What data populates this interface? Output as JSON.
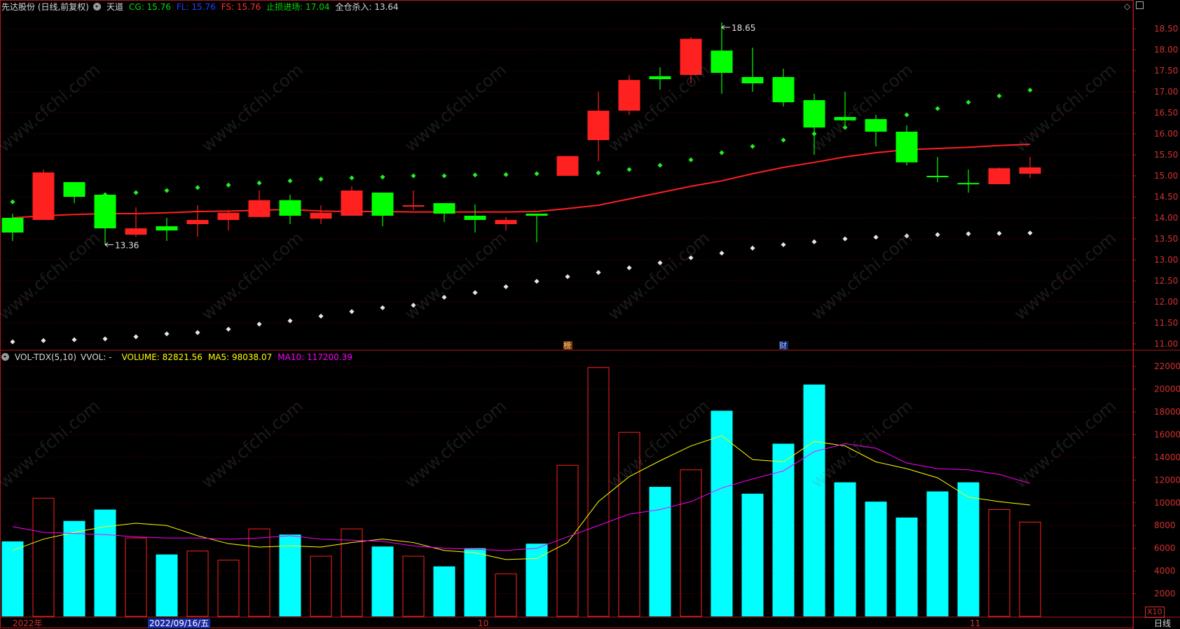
{
  "header": {
    "stock_name": "先达股份 (日线,前复权)",
    "indicator_name": "天道",
    "cg": "CG: 15.76",
    "fl": "FL: 15.76",
    "fs": "FS: 15.76",
    "stop_loss": "止损进场: 17.04",
    "all_cross": "全仓杀入: 13.64"
  },
  "vol_header": {
    "name": "VOL-TDX(5,10)",
    "vvol": "VVOL: -",
    "volume": "VOLUME: 82821.56",
    "ma5": "MA5: 98038.07",
    "ma10": "MA10: 117200.39"
  },
  "annotations": {
    "high": "18.65",
    "low": "13.36",
    "marker1": "榜",
    "marker2": "财"
  },
  "footer": {
    "year": "2022年",
    "cursor_date": "2022/09/16/五",
    "oct": "10",
    "nov": "11",
    "period": "日线",
    "x10": "X10"
  },
  "colors": {
    "up": "#ff2020",
    "down": "#00ff00",
    "vol_down": "#00ffff",
    "ma5": "#ffff00",
    "ma10": "#ff00ff",
    "grid": "#6a0000",
    "axis": "#b01818"
  },
  "chart_data": [
    {
      "type": "candlestick",
      "title": "先达股份 (日线,前复权)",
      "y_ticks": [
        11.0,
        11.5,
        12.0,
        12.5,
        13.0,
        13.5,
        14.0,
        14.5,
        15.0,
        15.5,
        16.0,
        16.5,
        17.0,
        17.5,
        18.0,
        18.5
      ],
      "ylim": [
        10.85,
        18.85
      ],
      "candles": [
        {
          "o": 14.0,
          "h": 14.1,
          "l": 13.45,
          "c": 13.65
        },
        {
          "o": 13.95,
          "h": 15.15,
          "l": 13.95,
          "c": 15.08
        },
        {
          "o": 14.85,
          "h": 14.85,
          "l": 14.35,
          "c": 14.5
        },
        {
          "o": 14.55,
          "h": 14.6,
          "l": 13.36,
          "c": 13.75
        },
        {
          "o": 13.6,
          "h": 14.25,
          "l": 13.55,
          "c": 13.75
        },
        {
          "o": 13.8,
          "h": 14.0,
          "l": 13.45,
          "c": 13.7
        },
        {
          "o": 13.85,
          "h": 14.3,
          "l": 13.55,
          "c": 13.95
        },
        {
          "o": 13.95,
          "h": 14.15,
          "l": 13.7,
          "c": 14.12
        },
        {
          "o": 14.02,
          "h": 14.65,
          "l": 14.02,
          "c": 14.42
        },
        {
          "o": 14.42,
          "h": 14.55,
          "l": 13.85,
          "c": 14.05
        },
        {
          "o": 13.98,
          "h": 14.3,
          "l": 13.85,
          "c": 14.12
        },
        {
          "o": 14.05,
          "h": 14.75,
          "l": 14.05,
          "c": 14.65
        },
        {
          "o": 14.6,
          "h": 14.6,
          "l": 13.8,
          "c": 14.05
        },
        {
          "o": 14.28,
          "h": 14.65,
          "l": 14.18,
          "c": 14.3
        },
        {
          "o": 14.35,
          "h": 14.35,
          "l": 13.9,
          "c": 14.1
        },
        {
          "o": 14.05,
          "h": 14.32,
          "l": 13.65,
          "c": 13.95
        },
        {
          "o": 13.85,
          "h": 14.02,
          "l": 13.7,
          "c": 13.95
        },
        {
          "o": 14.1,
          "h": 14.1,
          "l": 13.42,
          "c": 14.05
        },
        {
          "o": 15.0,
          "h": 15.47,
          "l": 15.0,
          "c": 15.47
        },
        {
          "o": 15.85,
          "h": 17.0,
          "l": 15.35,
          "c": 16.55
        },
        {
          "o": 16.55,
          "h": 17.4,
          "l": 16.45,
          "c": 17.28
        },
        {
          "o": 17.37,
          "h": 17.58,
          "l": 17.05,
          "c": 17.3
        },
        {
          "o": 17.4,
          "h": 18.3,
          "l": 17.2,
          "c": 18.26
        },
        {
          "o": 17.98,
          "h": 18.65,
          "l": 16.95,
          "c": 17.45
        },
        {
          "o": 17.35,
          "h": 18.05,
          "l": 17.0,
          "c": 17.2
        },
        {
          "o": 17.35,
          "h": 17.55,
          "l": 16.65,
          "c": 16.75
        },
        {
          "o": 16.8,
          "h": 16.95,
          "l": 15.5,
          "c": 16.15
        },
        {
          "o": 16.4,
          "h": 17.0,
          "l": 16.1,
          "c": 16.32
        },
        {
          "o": 16.35,
          "h": 16.45,
          "l": 15.7,
          "c": 16.05
        },
        {
          "o": 16.05,
          "h": 16.2,
          "l": 15.25,
          "c": 15.32
        },
        {
          "o": 15.0,
          "h": 15.45,
          "l": 14.85,
          "c": 14.99
        },
        {
          "o": 14.83,
          "h": 15.15,
          "l": 14.6,
          "c": 14.8
        },
        {
          "o": 14.8,
          "h": 15.2,
          "l": 14.8,
          "c": 15.18
        },
        {
          "o": 15.05,
          "h": 15.45,
          "l": 14.95,
          "c": 15.2
        }
      ],
      "ma_line": [
        14.0,
        14.05,
        14.08,
        14.1,
        14.1,
        14.12,
        14.15,
        14.16,
        14.18,
        14.2,
        14.16,
        14.15,
        14.15,
        14.14,
        14.14,
        14.14,
        14.14,
        14.15,
        14.22,
        14.3,
        14.45,
        14.6,
        14.75,
        14.88,
        15.05,
        15.2,
        15.32,
        15.45,
        15.55,
        15.62,
        15.65,
        15.68,
        15.72,
        15.75
      ],
      "upper_dots": [
        14.38,
        null,
        null,
        14.55,
        14.6,
        14.65,
        14.72,
        14.78,
        14.83,
        14.88,
        14.92,
        14.95,
        14.97,
        15.0,
        15.0,
        15.02,
        15.03,
        15.05,
        null,
        15.07,
        15.15,
        15.25,
        15.38,
        15.55,
        15.7,
        15.85,
        16.0,
        16.15,
        16.3,
        16.45,
        16.6,
        16.75,
        16.9,
        17.04
      ],
      "lower_dots": [
        11.05,
        11.08,
        11.1,
        11.12,
        11.17,
        11.24,
        11.27,
        11.35,
        11.47,
        11.55,
        11.66,
        11.77,
        11.86,
        11.92,
        12.11,
        12.22,
        12.36,
        12.49,
        12.6,
        12.7,
        12.81,
        12.93,
        13.05,
        13.16,
        13.28,
        13.36,
        13.43,
        13.5,
        13.54,
        13.57,
        13.6,
        13.62,
        13.63,
        13.64
      ]
    },
    {
      "type": "bar",
      "title": "VOL-TDX(5,10)",
      "y_ticks": [
        2000,
        4000,
        6000,
        8000,
        10000,
        12000,
        14000,
        16000,
        18000,
        20000,
        22000
      ],
      "ylim": [
        0,
        22500
      ],
      "volumes": [
        6600,
        10400,
        8400,
        9400,
        6900,
        5450,
        5750,
        4950,
        7700,
        7200,
        5300,
        7700,
        6150,
        5300,
        4400,
        6000,
        3750,
        6400,
        13300,
        21900,
        16200,
        11400,
        12900,
        18100,
        10800,
        15200,
        20400,
        11800,
        10100,
        8700,
        11000,
        11800,
        9400,
        8300
      ],
      "ma5": [
        5800,
        6800,
        7400,
        7900,
        8200,
        8000,
        7100,
        6400,
        6100,
        6200,
        6100,
        6500,
        6800,
        6500,
        5800,
        5600,
        5000,
        5100,
        6500,
        10100,
        12300,
        13700,
        15000,
        15900,
        13800,
        13600,
        15400,
        15000,
        13600,
        13000,
        12200,
        10500,
        10100,
        9800
      ],
      "ma10": [
        7900,
        7400,
        7300,
        7200,
        7000,
        6900,
        6900,
        6800,
        6900,
        7100,
        6800,
        6700,
        6600,
        6200,
        6000,
        5900,
        5800,
        6000,
        7000,
        8000,
        9000,
        9400,
        10100,
        11300,
        12100,
        12800,
        14500,
        15200,
        14800,
        13500,
        13000,
        12900,
        12500,
        11700
      ]
    }
  ]
}
